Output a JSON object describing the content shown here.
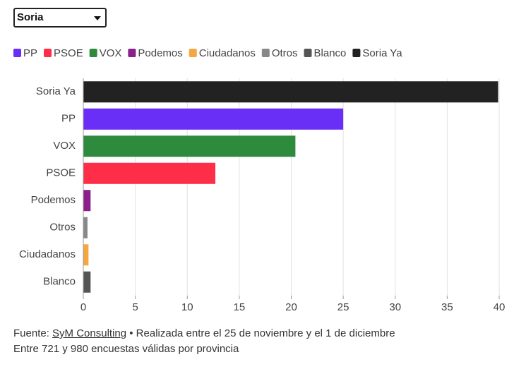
{
  "selector": {
    "value": "Soria"
  },
  "chart_data": {
    "type": "bar",
    "orientation": "horizontal",
    "legend": [
      {
        "name": "PP",
        "color": "#6a2ff7"
      },
      {
        "name": "PSOE",
        "color": "#ff2e48"
      },
      {
        "name": "VOX",
        "color": "#2e8b3e"
      },
      {
        "name": "Podemos",
        "color": "#8b1f8b"
      },
      {
        "name": "Ciudadanos",
        "color": "#f5a742"
      },
      {
        "name": "Otros",
        "color": "#888888"
      },
      {
        "name": "Blanco",
        "color": "#555555"
      },
      {
        "name": "Soria Ya",
        "color": "#222222"
      }
    ],
    "categories": [
      "Soria Ya",
      "PP",
      "VOX",
      "PSOE",
      "Podemos",
      "Otros",
      "Ciudadanos",
      "Blanco"
    ],
    "values": [
      39.9,
      25,
      20.4,
      12.7,
      0.7,
      0.4,
      0.5,
      0.7
    ],
    "colors": [
      "#222222",
      "#6a2ff7",
      "#2e8b3e",
      "#ff2e48",
      "#8b1f8b",
      "#888888",
      "#f5a742",
      "#555555"
    ],
    "xlim": [
      0,
      40
    ],
    "xticks": [
      0,
      5,
      10,
      15,
      20,
      25,
      30,
      35,
      40
    ],
    "grid": true
  },
  "footer": {
    "source_prefix": "Fuente:",
    "source_link": "SyM Consulting",
    "source_suffix": "• Realizada entre el 25 de noviembre y el 1 de diciembre",
    "note": "Entre 721 y 980 encuestas válidas por provincia"
  }
}
